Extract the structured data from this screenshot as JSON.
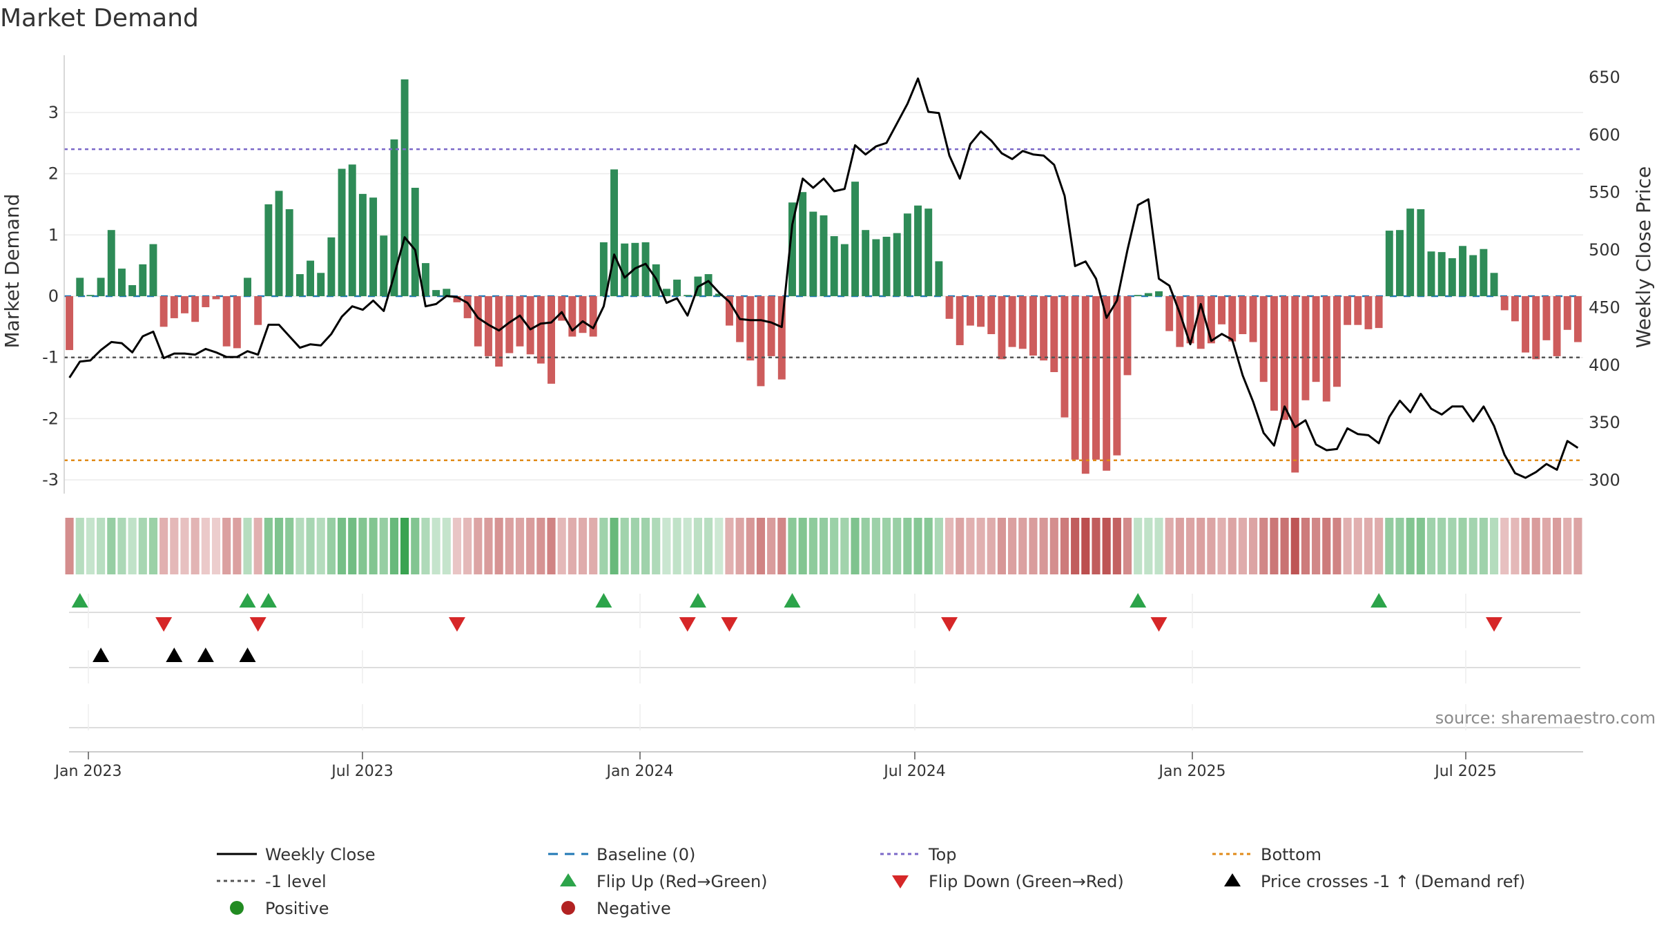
{
  "chart_data": {
    "type": "bar",
    "title": "Market Demand",
    "ylabel": "Market Demand",
    "y2label": "Weekly Close Price",
    "ylim": [
      -3.3,
      3.8
    ],
    "y2lim": [
      290,
      655
    ],
    "yticks": [
      3,
      2,
      1,
      0,
      -1,
      -2,
      -3
    ],
    "y2ticks": [
      650,
      600,
      550,
      500,
      450,
      400,
      350,
      300
    ],
    "date_ticks": [
      "Jan 2023",
      "Jul 2023",
      "Jan 2024",
      "Jul 2024",
      "Jan 2025",
      "Jul 2025"
    ],
    "reference_lines": {
      "top": 2.4,
      "minus_one": -1.0,
      "bottom": -2.68,
      "baseline": 0
    },
    "demand": [
      -0.88,
      0.3,
      0.02,
      0.3,
      1.08,
      0.45,
      0.18,
      0.52,
      0.85,
      -0.5,
      -0.36,
      -0.28,
      -0.42,
      -0.18,
      -0.05,
      -0.82,
      -0.85,
      0.3,
      -0.47,
      1.5,
      1.72,
      1.42,
      0.36,
      0.58,
      0.38,
      0.96,
      2.08,
      2.15,
      1.67,
      1.61,
      0.99,
      2.56,
      3.54,
      1.77,
      0.54,
      0.1,
      0.12,
      -0.1,
      -0.36,
      -0.82,
      -0.98,
      -1.15,
      -0.93,
      -0.82,
      -0.95,
      -1.1,
      -1.43,
      -0.4,
      -0.66,
      -0.6,
      -0.66,
      0.88,
      2.07,
      0.86,
      0.87,
      0.88,
      0.52,
      0.12,
      0.27,
      0.02,
      0.32,
      0.36,
      0.04,
      -0.48,
      -0.75,
      -1.05,
      -1.47,
      -0.98,
      -1.36,
      1.53,
      1.7,
      1.38,
      1.32,
      0.98,
      0.85,
      1.87,
      1.08,
      0.93,
      0.97,
      1.03,
      1.35,
      1.48,
      1.43,
      0.57,
      -0.37,
      -0.8,
      -0.48,
      -0.5,
      -0.62,
      -1.03,
      -0.83,
      -0.86,
      -0.97,
      -1.05,
      -1.24,
      -1.98,
      -2.67,
      -2.9,
      -2.67,
      -2.85,
      -2.6,
      -1.29,
      0.02,
      0.05,
      0.08,
      -0.57,
      -0.83,
      -0.77,
      -0.86,
      -0.77,
      -0.46,
      -0.74,
      -0.62,
      -0.75,
      -1.4,
      -1.87,
      -2.02,
      -2.88,
      -1.7,
      -1.4,
      -1.72,
      -1.48,
      -0.47,
      -0.47,
      -0.54,
      -0.52,
      1.07,
      1.08,
      1.43,
      1.42,
      0.73,
      0.72,
      0.62,
      0.82,
      0.67,
      0.77,
      0.38,
      -0.23,
      -0.41,
      -0.92,
      -1.03,
      -0.72,
      -0.98,
      -0.55,
      -0.75
    ],
    "close": [
      389,
      403,
      404,
      413,
      420,
      419,
      411,
      425,
      429,
      406,
      410,
      410,
      409,
      414,
      411,
      407,
      407,
      412,
      409,
      435,
      435,
      425,
      415,
      418,
      417,
      427,
      442,
      451,
      448,
      456,
      447,
      478,
      511,
      500,
      451,
      453,
      460,
      459,
      454,
      441,
      435,
      430,
      437,
      443,
      431,
      436,
      437,
      446,
      430,
      438,
      432,
      451,
      496,
      476,
      484,
      488,
      475,
      454,
      458,
      443,
      468,
      473,
      463,
      455,
      440,
      439,
      439,
      437,
      433,
      522,
      562,
      554,
      562,
      551,
      553,
      591,
      583,
      590,
      593,
      610,
      627,
      649,
      620,
      619,
      582,
      562,
      592,
      603,
      595,
      584,
      579,
      586,
      583,
      582,
      574,
      547,
      486,
      490,
      475,
      441,
      456,
      500,
      539,
      544,
      475,
      469,
      445,
      418,
      453,
      421,
      427,
      422,
      391,
      368,
      341,
      330,
      364,
      346,
      352,
      331,
      326,
      327,
      345,
      340,
      339,
      332,
      355,
      369,
      359,
      375,
      362,
      357,
      364,
      364,
      351,
      364,
      347,
      322,
      306,
      302,
      307,
      314,
      309,
      334,
      328
    ],
    "heat_opacity": [
      0.55,
      0.35,
      0.28,
      0.34,
      0.5,
      0.4,
      0.3,
      0.42,
      0.48,
      0.38,
      0.34,
      0.3,
      0.36,
      0.26,
      0.24,
      0.46,
      0.46,
      0.35,
      0.38,
      0.58,
      0.62,
      0.56,
      0.36,
      0.42,
      0.36,
      0.5,
      0.66,
      0.68,
      0.6,
      0.6,
      0.5,
      0.72,
      0.95,
      0.6,
      0.38,
      0.28,
      0.28,
      0.28,
      0.34,
      0.44,
      0.48,
      0.52,
      0.46,
      0.44,
      0.48,
      0.52,
      0.6,
      0.34,
      0.4,
      0.4,
      0.4,
      0.46,
      0.72,
      0.45,
      0.46,
      0.46,
      0.38,
      0.26,
      0.3,
      0.26,
      0.32,
      0.34,
      0.24,
      0.38,
      0.44,
      0.5,
      0.6,
      0.48,
      0.58,
      0.56,
      0.6,
      0.54,
      0.52,
      0.48,
      0.45,
      0.62,
      0.5,
      0.47,
      0.48,
      0.49,
      0.55,
      0.58,
      0.57,
      0.4,
      0.34,
      0.44,
      0.38,
      0.38,
      0.4,
      0.5,
      0.46,
      0.46,
      0.48,
      0.5,
      0.54,
      0.64,
      0.78,
      0.85,
      0.78,
      0.82,
      0.76,
      0.56,
      0.3,
      0.3,
      0.3,
      0.4,
      0.46,
      0.44,
      0.46,
      0.44,
      0.38,
      0.44,
      0.4,
      0.44,
      0.58,
      0.66,
      0.68,
      0.82,
      0.64,
      0.58,
      0.64,
      0.6,
      0.38,
      0.38,
      0.4,
      0.4,
      0.52,
      0.52,
      0.6,
      0.6,
      0.46,
      0.46,
      0.44,
      0.48,
      0.44,
      0.46,
      0.36,
      0.3,
      0.34,
      0.46,
      0.48,
      0.42,
      0.48,
      0.38,
      0.44
    ],
    "flip_up": [
      1,
      17,
      19,
      51,
      60,
      69,
      102,
      125
    ],
    "flip_down": [
      9,
      18,
      37,
      59,
      63,
      84,
      104,
      136
    ],
    "price_cross": [
      3,
      10,
      13,
      17
    ],
    "source": "source: sharemaestro.com",
    "legend": [
      {
        "key": "weekly_close",
        "label": "Weekly Close",
        "symbol": "line-solid",
        "color": "#000000"
      },
      {
        "key": "baseline",
        "label": "Baseline (0)",
        "symbol": "line-dash",
        "color": "#1f77b4"
      },
      {
        "key": "top",
        "label": "Top",
        "symbol": "line-dot",
        "color": "#7b68c8"
      },
      {
        "key": "bottom",
        "label": "Bottom",
        "symbol": "line-dot",
        "color": "#e08a17"
      },
      {
        "key": "minus_one",
        "label": "-1 level",
        "symbol": "line-dot",
        "color": "#555555"
      },
      {
        "key": "flip_up",
        "label": "Flip Up (Red→Green)",
        "symbol": "triangle-up",
        "color": "#2ca44a"
      },
      {
        "key": "flip_down",
        "label": "Flip Down (Green→Red)",
        "symbol": "triangle-down",
        "color": "#d62728"
      },
      {
        "key": "price_cross",
        "label": "Price crosses -1 ↑ (Demand ref)",
        "symbol": "triangle-up",
        "color": "#000000"
      },
      {
        "key": "positive",
        "label": "Positive",
        "symbol": "circle",
        "color": "#228b22"
      },
      {
        "key": "negative",
        "label": "Negative",
        "symbol": "circle",
        "color": "#b22222"
      }
    ],
    "colors": {
      "positive_bar": "#2e8b57",
      "negative_bar": "#cd5c5c",
      "heat_green": "#2e9e48",
      "heat_red": "#b03030",
      "flip_up": "#2ca44a",
      "flip_down": "#d62728",
      "price_cross": "#000000"
    }
  }
}
